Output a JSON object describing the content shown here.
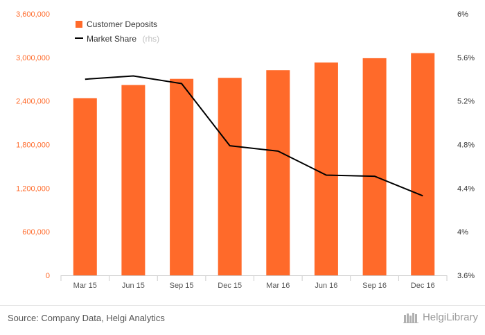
{
  "chart_data": {
    "type": "bar",
    "categories": [
      "Mar 15",
      "Jun 15",
      "Sep 15",
      "Dec 15",
      "Mar 16",
      "Jun 16",
      "Sep 16",
      "Dec 16"
    ],
    "series": [
      {
        "name": "Customer Deposits",
        "type": "bar",
        "axis": "left",
        "color": "#ff6a2a",
        "values": [
          2440000,
          2620000,
          2705000,
          2720000,
          2825000,
          2930000,
          2990000,
          3060000
        ]
      },
      {
        "name": "Market Share",
        "name_suffix": "(rhs)",
        "type": "line",
        "axis": "right",
        "color": "#000000",
        "values": [
          5.4,
          5.43,
          5.36,
          4.79,
          4.74,
          4.52,
          4.51,
          4.33
        ]
      }
    ],
    "y_left": {
      "ylim": [
        0,
        3600000
      ],
      "ticks": [
        0,
        600000,
        1200000,
        1800000,
        2400000,
        3000000,
        3600000
      ],
      "tick_labels": [
        "0",
        "600,000",
        "1,200,000",
        "1,800,000",
        "2,400,000",
        "3,000,000",
        "3,600,000"
      ]
    },
    "y_right": {
      "ylim": [
        3.6,
        6.0
      ],
      "ticks": [
        3.6,
        4.0,
        4.4,
        4.8,
        5.2,
        5.6,
        6.0
      ],
      "tick_labels": [
        "3.6%",
        "4%",
        "4.4%",
        "4.8%",
        "5.2%",
        "5.6%",
        "6%"
      ]
    },
    "legend_position": "top-left",
    "grid": false
  },
  "footer": {
    "source": "Source: Company Data, Helgi Analytics",
    "brand": "HelgiLibrary"
  }
}
